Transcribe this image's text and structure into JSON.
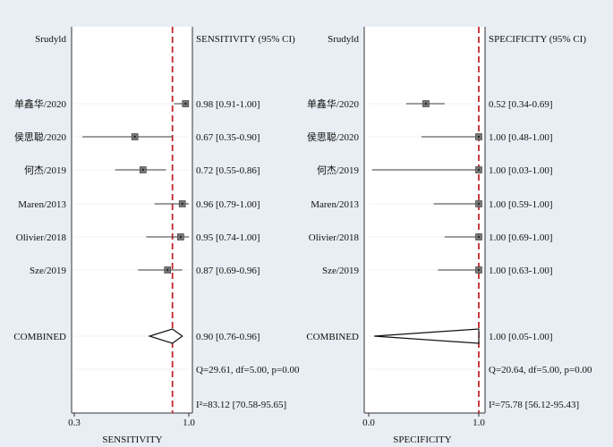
{
  "chart_data": [
    {
      "type": "forest",
      "study_header": "Srudyld",
      "ci_header": "SENSITIVITY (95% CI)",
      "xlabel": "SENSITIVITY",
      "xlim": [
        0.3,
        1.0
      ],
      "xticks": [
        {
          "value": 0.3,
          "label": "0.3"
        },
        {
          "value": 1.0,
          "label": "1.0"
        }
      ],
      "reference_line": 0.9,
      "studies": [
        {
          "name": "单鑫华/2020",
          "estimate": 0.98,
          "lower": 0.91,
          "upper": 1.0,
          "label": "0.98 [0.91-1.00]"
        },
        {
          "name": "侯思聪/2020",
          "estimate": 0.67,
          "lower": 0.35,
          "upper": 0.9,
          "label": "0.67 [0.35-0.90]"
        },
        {
          "name": "何杰/2019",
          "estimate": 0.72,
          "lower": 0.55,
          "upper": 0.86,
          "label": "0.72 [0.55-0.86]"
        },
        {
          "name": "Maren/2013",
          "estimate": 0.96,
          "lower": 0.79,
          "upper": 1.0,
          "label": "0.96 [0.79-1.00]"
        },
        {
          "name": "Olivier/2018",
          "estimate": 0.95,
          "lower": 0.74,
          "upper": 1.0,
          "label": "0.95 [0.74-1.00]"
        },
        {
          "name": "Sze/2019",
          "estimate": 0.87,
          "lower": 0.69,
          "upper": 0.96,
          "label": "0.87 [0.69-0.96]"
        }
      ],
      "combined": {
        "name": "COMBINED",
        "estimate": 0.9,
        "lower": 0.76,
        "upper": 0.96,
        "label": "0.90 [0.76-0.96]"
      },
      "heterogeneity": "Q=29.61, df=5.00, p=0.00",
      "i2": "I²=83.12 [70.58-95.65]"
    },
    {
      "type": "forest",
      "study_header": "Srudyld",
      "ci_header": "SPECIFICITY (95% CI)",
      "xlabel": "SPECIFICITY",
      "xlim": [
        0.0,
        1.0
      ],
      "xticks": [
        {
          "value": 0.0,
          "label": "0.0"
        },
        {
          "value": 1.0,
          "label": "1.0"
        }
      ],
      "reference_line": 1.0,
      "studies": [
        {
          "name": "单鑫华/2020",
          "estimate": 0.52,
          "lower": 0.34,
          "upper": 0.69,
          "label": "0.52 [0.34-0.69]"
        },
        {
          "name": "侯思聪/2020",
          "estimate": 1.0,
          "lower": 0.48,
          "upper": 1.0,
          "label": "1.00 [0.48-1.00]"
        },
        {
          "name": "何杰/2019",
          "estimate": 1.0,
          "lower": 0.03,
          "upper": 1.0,
          "label": "1.00 [0.03-1.00]"
        },
        {
          "name": "Maren/2013",
          "estimate": 1.0,
          "lower": 0.59,
          "upper": 1.0,
          "label": "1.00 [0.59-1.00]"
        },
        {
          "name": "Olivier/2018",
          "estimate": 1.0,
          "lower": 0.69,
          "upper": 1.0,
          "label": "1.00 [0.69-1.00]"
        },
        {
          "name": "Sze/2019",
          "estimate": 1.0,
          "lower": 0.63,
          "upper": 1.0,
          "label": "1.00 [0.63-1.00]"
        }
      ],
      "combined": {
        "name": "COMBINED",
        "estimate": 1.0,
        "lower": 0.05,
        "upper": 1.0,
        "label": "1.00 [0.05-1.00]"
      },
      "heterogeneity": "Q=20.64, df=5.00, p=0.00",
      "i2": "I²=75.78 [56.12-95.43]"
    }
  ],
  "colors": {
    "background": "#e8eef3",
    "panel": "#ffffff",
    "reference_line": "#c0282d",
    "ci_line": "#3a3a3a",
    "marker": "#777777",
    "text": "#111111"
  }
}
